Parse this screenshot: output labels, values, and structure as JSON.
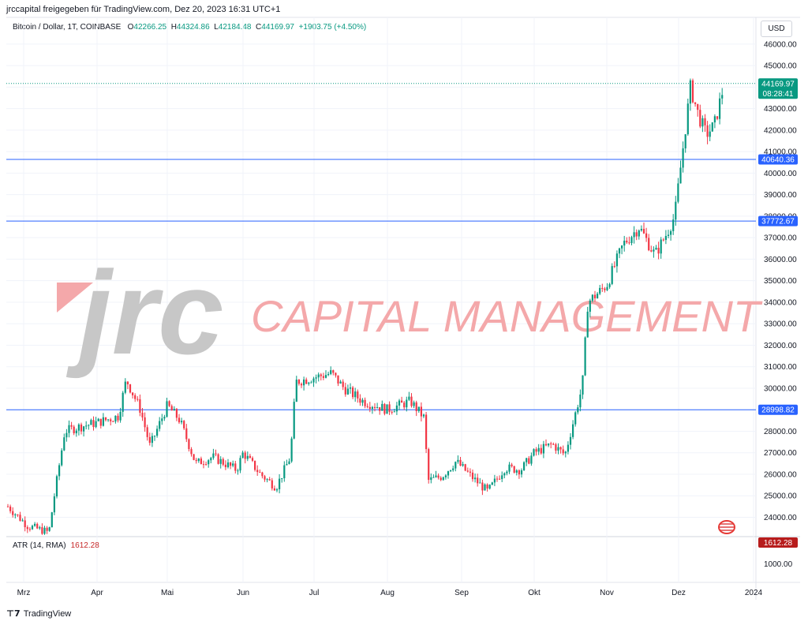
{
  "header": {
    "published_by": "jrccapital freigegeben für TradingView.com, Dez 20, 2023 16:31 UTC+1"
  },
  "symbol": {
    "name": "Bitcoin / Dollar, 1T, COINBASE",
    "o_label": "O",
    "o_value": "42266.25",
    "h_label": "H",
    "h_value": "44324.86",
    "l_label": "L",
    "l_value": "42184.48",
    "c_label": "C",
    "c_value": "44169.97",
    "change": "+1903.75 (+4.50%)"
  },
  "currency": "USD",
  "watermark": {
    "logo_text": "jrc",
    "company": "CAPITAL MANAGEMENT"
  },
  "indicator": {
    "name": "ATR (14, RMA)",
    "value": "1612.28"
  },
  "price_badges": {
    "last_price": "44169.97",
    "countdown": "08:28:41",
    "line_1": "40640.36",
    "line_2": "37772.67",
    "line_3": "28998.82",
    "atr": "1612.28"
  },
  "footer": {
    "brand": "TradingView"
  },
  "colors": {
    "up": "#089981",
    "down": "#f23645",
    "level_line": "#2962ff",
    "atr_badge": "#b71c1c",
    "watermark_grey": "#c7c7c7",
    "watermark_red": "#f4a8aa"
  },
  "chart_data": {
    "type": "candlestick",
    "instrument": "Bitcoin / Dollar",
    "interval": "1T",
    "exchange": "COINBASE",
    "y_ticks": [
      24000,
      25000,
      26000,
      27000,
      28000,
      29000,
      30000,
      31000,
      32000,
      33000,
      34000,
      35000,
      36000,
      37000,
      38000,
      39000,
      40000,
      41000,
      42000,
      43000,
      44000,
      45000,
      46000
    ],
    "ylim": [
      23100,
      46400
    ],
    "x_ticks": [
      "Mrz",
      "Apr",
      "Mai",
      "Jun",
      "Jul",
      "Aug",
      "Sep",
      "Okt",
      "Nov",
      "Dez",
      "2024"
    ],
    "horizontal_levels": [
      40640.36,
      37772.67,
      28998.82
    ],
    "atr_pane": {
      "ticks": [
        1000
      ],
      "value": 1612.28
    },
    "series": [
      {
        "name": "Bitcoin / Dollar",
        "monthly_path": [
          {
            "month": "Mrz",
            "close": 23200
          },
          {
            "month": "Apr",
            "close": 28400
          },
          {
            "month": "Mai",
            "close": 29200
          },
          {
            "month": "Jun",
            "close": 27000
          },
          {
            "month": "Jul",
            "close": 30500
          },
          {
            "month": "Aug",
            "close": 29200
          },
          {
            "month": "Sep",
            "close": 25900
          },
          {
            "month": "Okt",
            "close": 27000
          },
          {
            "month": "Nov",
            "close": 34500
          },
          {
            "month": "Dez",
            "close": 38500
          }
        ]
      }
    ]
  }
}
